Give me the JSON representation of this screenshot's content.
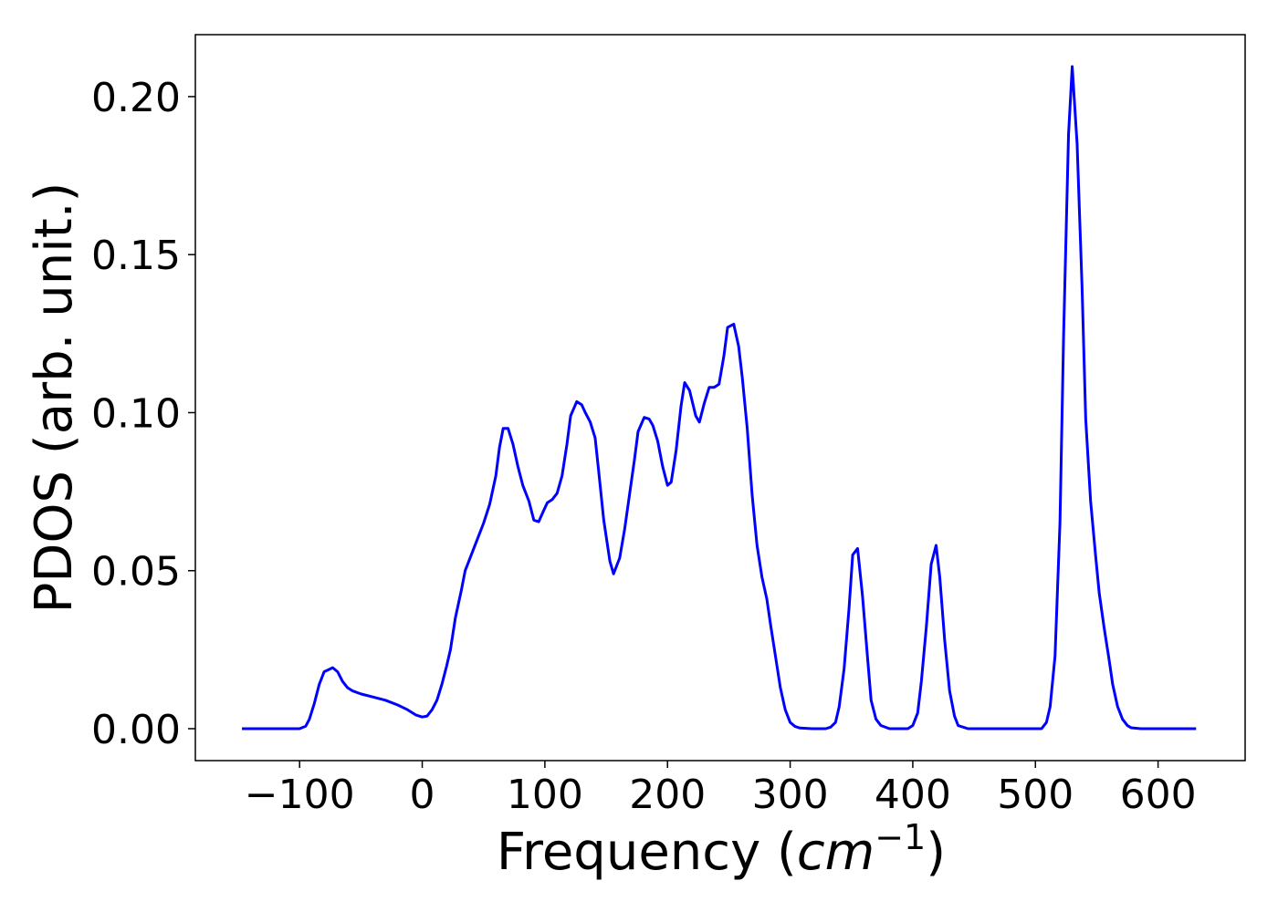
{
  "chart_data": {
    "type": "line",
    "y_label": "PDOS (arb. unit.)",
    "x_label": {
      "text": "Frequency (",
      "unit": "cm",
      "exponent": "−1",
      "close": ")"
    },
    "x": [
      -147,
      -100,
      -95,
      -92,
      -88,
      -84,
      -80,
      -73,
      -69,
      -65,
      -61,
      -57,
      -50,
      -40,
      -30,
      -20,
      -12,
      -5,
      0,
      4,
      8,
      12,
      16,
      20,
      23,
      27,
      32,
      35,
      40,
      45,
      50,
      55,
      60,
      63,
      66,
      70,
      74,
      78,
      82,
      87,
      91,
      95,
      99,
      102,
      106,
      110,
      114,
      118,
      121,
      126,
      130,
      133,
      137,
      141,
      144,
      148,
      153,
      156,
      161,
      165,
      169,
      173,
      176,
      181,
      185,
      188,
      192,
      196,
      200,
      203,
      207,
      211,
      214,
      218,
      223,
      226,
      230,
      234,
      238,
      242,
      246,
      249,
      254,
      258,
      261,
      265,
      269,
      273,
      277,
      281,
      284,
      288,
      292,
      296,
      300,
      304,
      308,
      318,
      329,
      333,
      337,
      340,
      344,
      348,
      351,
      355,
      359,
      363,
      366,
      370,
      374,
      381,
      396,
      400,
      404,
      407,
      411,
      415,
      419,
      422,
      426,
      430,
      434,
      437,
      445,
      505,
      509,
      512,
      516,
      520,
      523,
      527,
      530,
      534,
      538,
      541,
      545,
      549,
      552,
      556,
      560,
      563,
      567,
      571,
      575,
      578,
      586,
      631
    ],
    "series": [
      {
        "name": "PDOS",
        "color": "#0000ff",
        "values": [
          0,
          0,
          0.0008,
          0.003,
          0.008,
          0.014,
          0.018,
          0.0193,
          0.018,
          0.015,
          0.013,
          0.012,
          0.011,
          0.01,
          0.009,
          0.0075,
          0.006,
          0.0043,
          0.0037,
          0.004,
          0.006,
          0.009,
          0.014,
          0.02,
          0.025,
          0.035,
          0.044,
          0.05,
          0.055,
          0.06,
          0.065,
          0.071,
          0.08,
          0.089,
          0.095,
          0.095,
          0.09,
          0.083,
          0.077,
          0.072,
          0.066,
          0.0655,
          0.069,
          0.0715,
          0.0725,
          0.0745,
          0.08,
          0.09,
          0.099,
          0.1035,
          0.1025,
          0.1,
          0.097,
          0.092,
          0.081,
          0.066,
          0.053,
          0.049,
          0.054,
          0.063,
          0.074,
          0.085,
          0.094,
          0.0985,
          0.098,
          0.096,
          0.091,
          0.083,
          0.077,
          0.078,
          0.088,
          0.102,
          0.1095,
          0.107,
          0.099,
          0.097,
          0.103,
          0.108,
          0.108,
          0.109,
          0.118,
          0.127,
          0.128,
          0.121,
          0.111,
          0.095,
          0.074,
          0.058,
          0.048,
          0.041,
          0.033,
          0.023,
          0.013,
          0.006,
          0.002,
          0.0007,
          0.0002,
          0,
          0,
          0.0005,
          0.002,
          0.007,
          0.019,
          0.038,
          0.055,
          0.057,
          0.042,
          0.023,
          0.009,
          0.003,
          0.001,
          0,
          0,
          0.001,
          0.005,
          0.015,
          0.032,
          0.052,
          0.058,
          0.048,
          0.028,
          0.012,
          0.004,
          0.001,
          0,
          0,
          0.002,
          0.007,
          0.023,
          0.065,
          0.125,
          0.188,
          0.2095,
          0.185,
          0.14,
          0.098,
          0.072,
          0.055,
          0.043,
          0.032,
          0.022,
          0.014,
          0.007,
          0.003,
          0.001,
          0.0003,
          0,
          0
        ]
      }
    ],
    "xlim": [
      -185,
      671
    ],
    "ylim": [
      -0.0101,
      0.2196
    ],
    "xticks": [
      {
        "value": -100,
        "label": "−100"
      },
      0,
      100,
      200,
      300,
      400,
      500,
      600
    ],
    "yticks": [
      {
        "value": 0,
        "label": "0.00"
      },
      0.05,
      {
        "value": 0.1,
        "label": "0.10"
      },
      0.15,
      {
        "value": 0.2,
        "label": "0.20"
      }
    ],
    "grid": false
  }
}
